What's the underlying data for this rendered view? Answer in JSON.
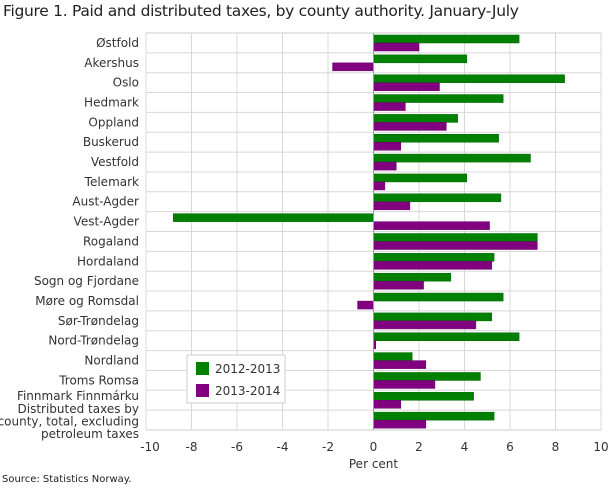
{
  "title": "Figure 1. Paid and distributed taxes, by county authority. January-July",
  "source": "Source: Statistics Norway.",
  "chart_data": {
    "type": "bar",
    "orientation": "horizontal",
    "categories": [
      "Østfold",
      "Akershus",
      "Oslo",
      "Hedmark",
      "Oppland",
      "Buskerud",
      "Vestfold",
      "Telemark",
      "Aust-Agder",
      "Vest-Agder",
      "Rogaland",
      "Hordaland",
      "Sogn og Fjordane",
      "Møre og Romsdal",
      "Sør-Trøndelag",
      "Nord-Trøndelag",
      "Nordland",
      "Troms Romsa",
      "Finnmark Finnmárku",
      "Distributed taxes by county, total, excluding petroleum taxes"
    ],
    "series": [
      {
        "name": "2012-2013",
        "color": "#008000",
        "values": [
          6.4,
          4.1,
          8.4,
          5.7,
          3.7,
          5.5,
          6.9,
          4.1,
          5.6,
          -8.8,
          7.2,
          5.3,
          3.4,
          5.7,
          5.2,
          6.4,
          1.7,
          4.7,
          4.4,
          5.3
        ]
      },
      {
        "name": "2013-2014",
        "color": "#800080",
        "values": [
          2.0,
          -1.8,
          2.9,
          1.4,
          3.2,
          1.2,
          1.0,
          0.5,
          1.6,
          5.1,
          7.2,
          5.2,
          2.2,
          -0.7,
          4.5,
          0.1,
          2.3,
          2.7,
          1.2,
          2.3
        ]
      }
    ],
    "xlabel": "Per cent",
    "xlim": [
      -10,
      10
    ],
    "xticks": [
      "-10",
      "-8",
      "-6",
      "-4",
      "-2",
      "0",
      "2",
      "4",
      "6",
      "8",
      "10"
    ],
    "grid": true,
    "legend": "lower-left inside"
  }
}
